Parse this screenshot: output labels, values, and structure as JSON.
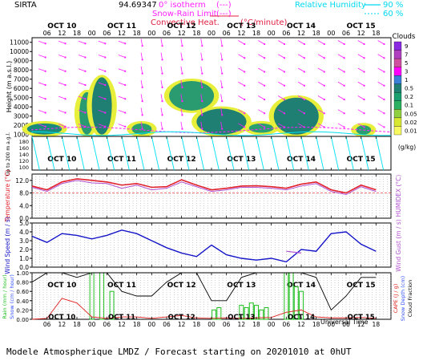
{
  "header": {
    "site": "SIRTA",
    "coords": "94.69347",
    "legend_isotherm": "0° isotherm",
    "legend_isotherm_swatch": "(---)",
    "legend_snow_rain": "Snow-Rain Limit",
    "legend_snow_rain_swatch": "(---)",
    "legend_convective": "Convective Heat.",
    "legend_convective_unit": "(°C/minute)",
    "legend_rh": "Relative Humidity",
    "legend_rh_90": "90 %",
    "legend_rh_60": "60 %"
  },
  "footer": "Modele Atmospherique LMDZ / Forecast starting on 20201010 at 0hUT",
  "colors": {
    "temperature": "#e0202a",
    "humidex": "#b050d0",
    "wind": "#1414c8",
    "gust": "#b050d0",
    "rain": "#20c020",
    "snow": "#3050ff",
    "cape": "#e02020",
    "cloud_fraction": "#000000",
    "wind_arrows": "#ff20ff",
    "rh": "#00e0f0"
  },
  "chart_data": [
    {
      "type": "heatmap",
      "panel": "clouds",
      "days": [
        "OCT 10",
        "OCT 11",
        "OCT 12",
        "OCT 13",
        "OCT 14",
        "OCT 15"
      ],
      "hour_ticks": [
        "06",
        "12",
        "18",
        "00",
        "06",
        "12",
        "18",
        "00",
        "06",
        "12",
        "18",
        "00",
        "06",
        "12",
        "18",
        "00",
        "06",
        "12",
        "18",
        "00",
        "06",
        "12",
        "18",
        "00",
        "06",
        "12",
        "18"
      ],
      "ylabel": "Height  (m a.s.l.)",
      "yticks": [
        "11000",
        "10000",
        "9000",
        "8000",
        "7000",
        "6000",
        "5000",
        "4000",
        "3000",
        "2000",
        "1000"
      ],
      "ylim": [
        800,
        11500
      ],
      "colorbar_title": "Clouds",
      "colorbar_unit": "(g/kg)",
      "colorbar_labels": [
        "9",
        "7",
        "5",
        "3",
        "1",
        "0.5",
        "0.2",
        "0.1",
        "0.05",
        "0.02",
        "0.01"
      ]
    },
    {
      "type": "line",
      "panel": "boundary-layer",
      "ylabel": "Up to 200 m a.g.l.",
      "yticks": [
        "180",
        "160",
        "140",
        "120",
        "100"
      ],
      "days": [
        "OCT 10",
        "OCT 11",
        "OCT 12",
        "OCT 13",
        "OCT 14",
        "OCT 15"
      ]
    },
    {
      "type": "line",
      "panel": "temperature",
      "ylabel": "Temperature (°C)",
      "ylabel_right": "HUMIDEX (°C)",
      "yticks": [
        "12.0",
        "8.0",
        "4.0",
        "0.0"
      ],
      "ylim": [
        0,
        14
      ],
      "x_hours": [
        0,
        6,
        12,
        18,
        24,
        30,
        36,
        42,
        48,
        54,
        60,
        66,
        72,
        78,
        84,
        90,
        96,
        102,
        108,
        114,
        120,
        126,
        132,
        138
      ],
      "series": [
        {
          "name": "Temperature",
          "values": [
            10.2,
            9.0,
            11.5,
            12.5,
            12.0,
            11.5,
            10.5,
            11.0,
            9.8,
            10.0,
            12.2,
            10.5,
            9.0,
            9.5,
            10.2,
            10.3,
            10.0,
            9.5,
            10.8,
            11.5,
            9.0,
            8.0,
            10.5,
            9.0
          ]
        },
        {
          "name": "HUMIDEX",
          "values": [
            9.8,
            8.5,
            11.0,
            12.0,
            11.2,
            11.0,
            9.5,
            10.5,
            9.0,
            9.5,
            11.5,
            10.0,
            8.5,
            9.0,
            9.8,
            9.8,
            9.5,
            9.0,
            10.2,
            11.0,
            8.5,
            7.5,
            10.0,
            8.5
          ]
        }
      ]
    },
    {
      "type": "line",
      "panel": "wind",
      "ylabel": "Wind Speed (m / s)",
      "ylabel_right": "Wind Gust (m / s)",
      "yticks": [
        "5.0",
        "4.0",
        "3.0",
        "2.0",
        "1.0",
        "0.0"
      ],
      "ylim": [
        0,
        5
      ],
      "x_hours": [
        0,
        6,
        12,
        18,
        24,
        30,
        36,
        42,
        48,
        54,
        60,
        66,
        72,
        78,
        84,
        90,
        96,
        102,
        108,
        114,
        120,
        126,
        132,
        138
      ],
      "series": [
        {
          "name": "Wind Speed",
          "values": [
            3.5,
            2.8,
            3.8,
            3.6,
            3.2,
            3.6,
            4.2,
            3.8,
            3.0,
            2.2,
            1.6,
            1.2,
            2.5,
            1.4,
            1.0,
            0.8,
            1.0,
            0.6,
            2.0,
            1.8,
            3.8,
            4.0,
            2.6,
            1.8
          ]
        },
        {
          "name": "Wind Gust",
          "values": [
            null,
            null,
            null,
            null,
            null,
            null,
            null,
            null,
            null,
            null,
            null,
            null,
            null,
            null,
            null,
            null,
            null,
            1.8,
            1.6,
            null,
            null,
            null,
            null,
            null
          ]
        }
      ]
    },
    {
      "type": "bar",
      "panel": "precipitation",
      "ylabel": "Rain (mm / hour)",
      "ylabel2": "Snow (cm / hour)",
      "ylabel_right": "CAPE (J / g)",
      "ylabel_right2": "Snow Depth (cm)",
      "ylabel_right3": "Cloud Fraction",
      "yticks": [
        "1.00",
        "0.80",
        "0.60",
        "0.40",
        "0.20",
        "0.00"
      ],
      "ylim": [
        0,
        1
      ],
      "rain_bars": [
        {
          "hour": 24,
          "value": 1.0
        },
        {
          "hour": 28,
          "value": 1.0
        },
        {
          "hour": 32,
          "value": 0.6
        },
        {
          "hour": 73,
          "value": 0.2
        },
        {
          "hour": 75,
          "value": 0.25
        },
        {
          "hour": 84,
          "value": 0.3
        },
        {
          "hour": 86,
          "value": 0.25
        },
        {
          "hour": 88,
          "value": 0.35
        },
        {
          "hour": 90,
          "value": 0.3
        },
        {
          "hour": 92,
          "value": 0.2
        },
        {
          "hour": 94,
          "value": 0.25
        },
        {
          "hour": 102,
          "value": 1.0
        },
        {
          "hour": 104,
          "value": 1.0
        },
        {
          "hour": 106,
          "value": 0.7
        },
        {
          "hour": 108,
          "value": 0.6
        }
      ],
      "cloud_fraction": [
        0.8,
        1.0,
        1.0,
        0.9,
        1.0,
        1.0,
        0.6,
        0.5,
        0.5,
        0.8,
        1.0,
        1.0,
        0.4,
        0.4,
        0.9,
        1.0,
        1.0,
        1.0,
        1.0,
        0.9,
        0.2,
        0.5,
        0.9,
        0.9
      ],
      "cape": [
        0.0,
        0.02,
        0.45,
        0.35,
        0.05,
        0.02,
        0.05,
        0.05,
        0.02,
        0.05,
        0.08,
        0.03,
        0.02,
        0.03,
        0.02,
        0.03,
        0.04,
        0.15,
        0.2,
        0.05,
        0.03,
        0.03,
        0.04,
        0.02
      ]
    }
  ],
  "bottom_axis_title": "Universal Time"
}
